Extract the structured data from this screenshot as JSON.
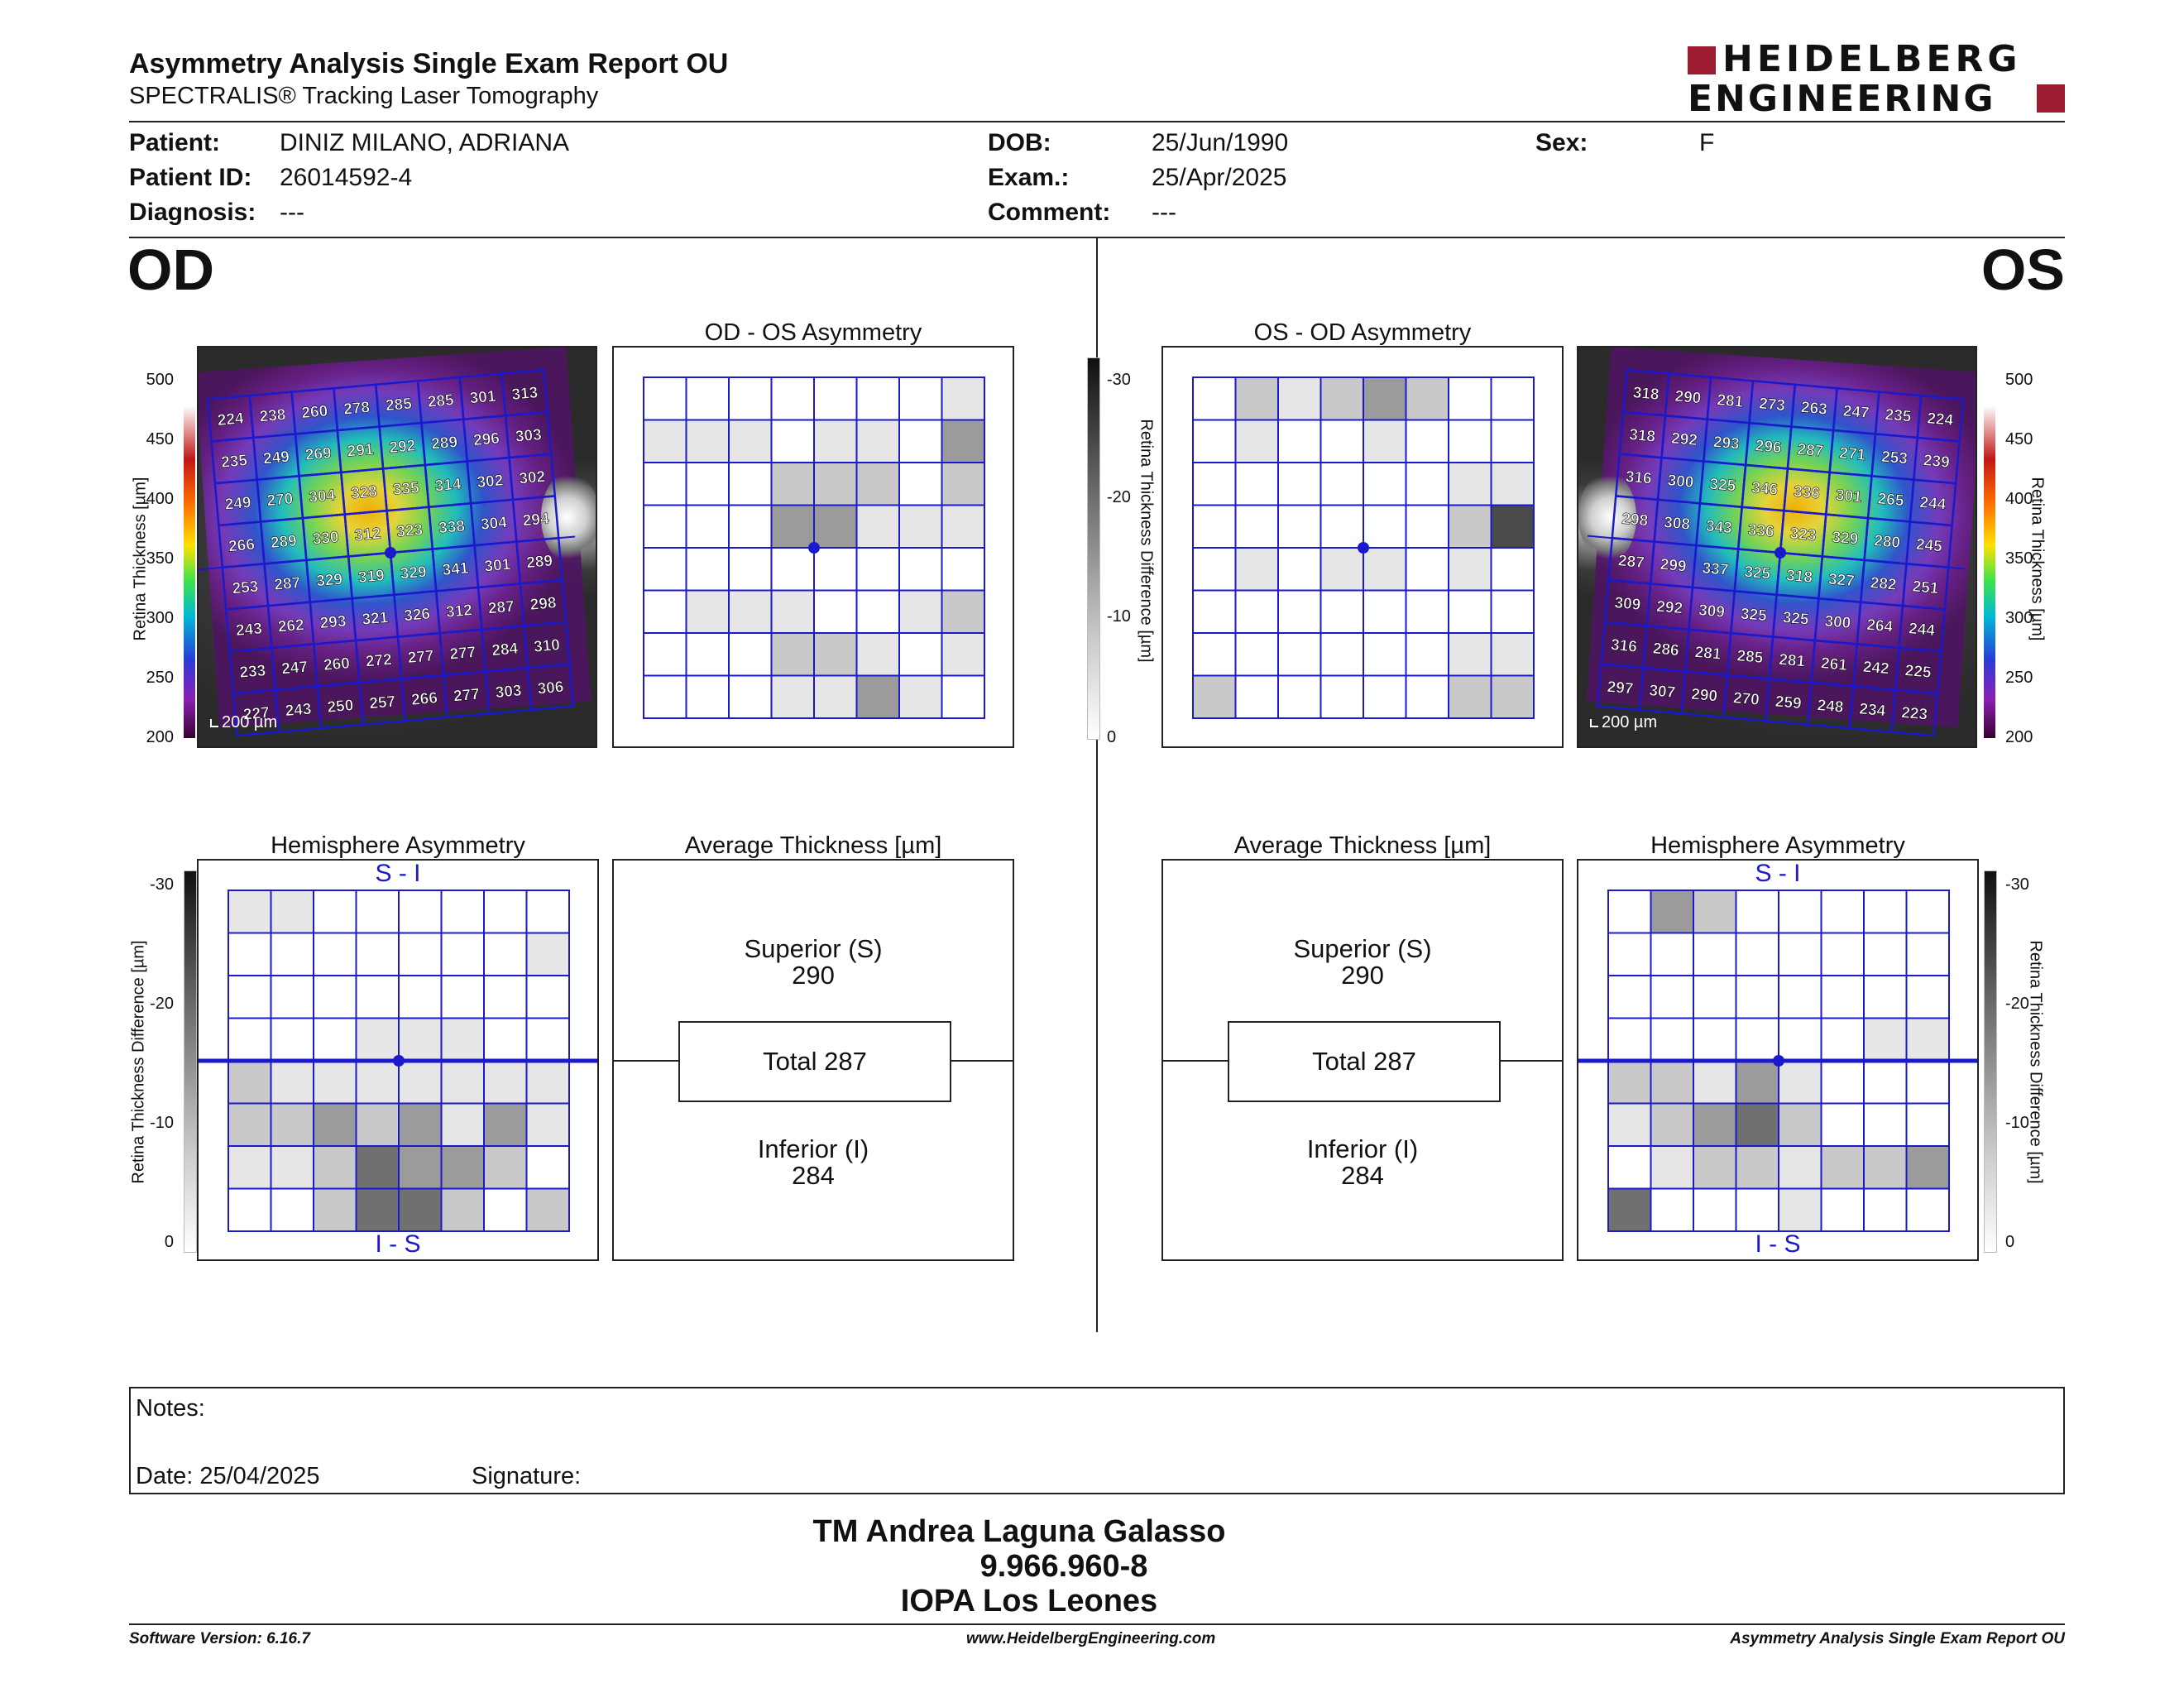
{
  "header": {
    "title": "Asymmetry Analysis Single Exam Report OU",
    "subtitle": "SPECTRALIS® Tracking Laser Tomography",
    "logo_line1": "HEIDELBERG",
    "logo_line2": "ENGINEERING",
    "brand_color": "#9c1b2e"
  },
  "patient": {
    "patient_label": "Patient:",
    "patient_value": "DINIZ MILANO, ADRIANA",
    "id_label": "Patient ID:",
    "id_value": "26014592-4",
    "diagnosis_label": "Diagnosis:",
    "diagnosis_value": "---",
    "dob_label": "DOB:",
    "dob_value": "25/Jun/1990",
    "exam_label": "Exam.:",
    "exam_value": "25/Apr/2025",
    "comment_label": "Comment:",
    "comment_value": "---",
    "sex_label": "Sex:",
    "sex_value": "F"
  },
  "od": {
    "label": "OD",
    "asym_title": "OD - OS Asymmetry",
    "hemi_title": "Hemisphere Asymmetry",
    "avg_title": "Average Thickness [µm]",
    "scale_label": "200 µm",
    "thickness_grid": [
      [
        224,
        238,
        260,
        278,
        285,
        285,
        301,
        313
      ],
      [
        235,
        249,
        269,
        291,
        292,
        289,
        296,
        303
      ],
      [
        249,
        270,
        304,
        328,
        335,
        314,
        302,
        302
      ],
      [
        266,
        289,
        330,
        312,
        323,
        338,
        304,
        294
      ],
      [
        253,
        287,
        329,
        319,
        329,
        341,
        301,
        289
      ],
      [
        243,
        262,
        293,
        321,
        326,
        312,
        287,
        298
      ],
      [
        233,
        247,
        260,
        272,
        277,
        277,
        284,
        310
      ],
      [
        227,
        243,
        250,
        257,
        266,
        277,
        303,
        306
      ]
    ],
    "asym_grid": [
      [
        0,
        0,
        0,
        0,
        0,
        0,
        0,
        1
      ],
      [
        1,
        1,
        1,
        0,
        1,
        1,
        0,
        3
      ],
      [
        0,
        0,
        0,
        2,
        2,
        2,
        0,
        2
      ],
      [
        0,
        0,
        0,
        3,
        3,
        1,
        1,
        1
      ],
      [
        0,
        0,
        0,
        0,
        0,
        0,
        0,
        0
      ],
      [
        0,
        1,
        1,
        1,
        0,
        0,
        1,
        2
      ],
      [
        0,
        0,
        0,
        2,
        2,
        1,
        0,
        1
      ],
      [
        0,
        0,
        0,
        1,
        1,
        3,
        1,
        0
      ]
    ],
    "hemi_grid": [
      [
        1,
        1,
        0,
        0,
        0,
        0,
        0,
        0
      ],
      [
        0,
        0,
        0,
        0,
        0,
        0,
        0,
        1
      ],
      [
        0,
        0,
        0,
        0,
        0,
        0,
        0,
        0
      ],
      [
        0,
        0,
        0,
        1,
        1,
        1,
        0,
        0
      ],
      [
        2,
        1,
        1,
        1,
        1,
        1,
        1,
        1
      ],
      [
        2,
        2,
        3,
        2,
        3,
        1,
        3,
        1
      ],
      [
        1,
        1,
        2,
        4,
        3,
        3,
        2,
        0
      ],
      [
        0,
        0,
        2,
        4,
        4,
        2,
        0,
        2
      ]
    ],
    "hemi_top": "S - I",
    "hemi_bottom": "I - S",
    "superior_label": "Superior (S)",
    "superior_value": "290",
    "total_label": "Total 287",
    "inferior_label": "Inferior (I)",
    "inferior_value": "284"
  },
  "os": {
    "label": "OS",
    "asym_title": "OS - OD Asymmetry",
    "hemi_title": "Hemisphere Asymmetry",
    "avg_title": "Average Thickness [µm]",
    "scale_label": "200 µm",
    "thickness_grid": [
      [
        318,
        290,
        281,
        273,
        263,
        247,
        235,
        224
      ],
      [
        318,
        292,
        293,
        296,
        287,
        271,
        253,
        239
      ],
      [
        316,
        300,
        325,
        346,
        336,
        301,
        265,
        244
      ],
      [
        298,
        308,
        343,
        336,
        323,
        329,
        280,
        245
      ],
      [
        287,
        299,
        337,
        325,
        318,
        327,
        282,
        251
      ],
      [
        309,
        292,
        309,
        325,
        325,
        300,
        264,
        244
      ],
      [
        316,
        286,
        281,
        285,
        281,
        261,
        242,
        225
      ],
      [
        297,
        307,
        290,
        270,
        259,
        248,
        234,
        223
      ]
    ],
    "asym_grid": [
      [
        0,
        2,
        1,
        2,
        3,
        2,
        0,
        0
      ],
      [
        0,
        1,
        0,
        0,
        1,
        0,
        0,
        0
      ],
      [
        0,
        0,
        0,
        0,
        0,
        0,
        1,
        1
      ],
      [
        0,
        0,
        0,
        0,
        0,
        0,
        2,
        5
      ],
      [
        0,
        1,
        0,
        1,
        1,
        0,
        1,
        0
      ],
      [
        0,
        0,
        0,
        0,
        0,
        0,
        0,
        0
      ],
      [
        0,
        0,
        0,
        0,
        0,
        0,
        1,
        1
      ],
      [
        2,
        0,
        0,
        0,
        0,
        0,
        2,
        2
      ]
    ],
    "hemi_grid": [
      [
        0,
        3,
        2,
        0,
        0,
        0,
        0,
        0
      ],
      [
        0,
        0,
        0,
        0,
        0,
        0,
        0,
        0
      ],
      [
        0,
        0,
        0,
        0,
        0,
        0,
        0,
        0
      ],
      [
        0,
        0,
        0,
        0,
        0,
        0,
        1,
        1
      ],
      [
        2,
        2,
        1,
        3,
        1,
        0,
        0,
        0
      ],
      [
        1,
        2,
        3,
        4,
        2,
        0,
        0,
        0
      ],
      [
        0,
        1,
        2,
        2,
        1,
        2,
        2,
        3
      ],
      [
        4,
        0,
        0,
        0,
        1,
        0,
        0,
        0
      ]
    ],
    "hemi_top": "S - I",
    "hemi_bottom": "I - S",
    "superior_label": "Superior (S)",
    "superior_value": "290",
    "total_label": "Total 287",
    "inferior_label": "Inferior (I)",
    "inferior_value": "284"
  },
  "axes": {
    "thickness_label": "Retina Thickness [µm]",
    "thickness_ticks": [
      "500",
      "450",
      "400",
      "350",
      "300",
      "250",
      "200"
    ],
    "diff_label": "Retina Thickness Difference [µm]",
    "diff_ticks": [
      "-30",
      "-20",
      "-10",
      "0"
    ]
  },
  "gray_levels": [
    "#ffffff",
    "#e6e6e6",
    "#c9c9c9",
    "#9b9b9b",
    "#707070",
    "#4a4a4a"
  ],
  "grid_color": "#1a1acc",
  "notes": {
    "notes_label": "Notes:",
    "date_label": "Date: 25/04/2025",
    "signature_label": "Signature:"
  },
  "signature": {
    "name": "TM Andrea Laguna Galasso",
    "id": "9.966.960-8",
    "institution": "IOPA Los Leones"
  },
  "footer": {
    "software": "Software Version: 6.16.7",
    "website": "www.HeidelbergEngineering.com",
    "report": "Asymmetry Analysis Single Exam Report OU"
  }
}
